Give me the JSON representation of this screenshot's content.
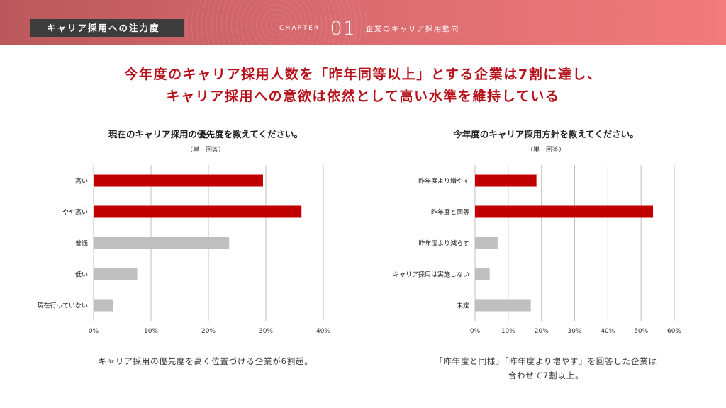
{
  "header": {
    "section_label": "キャリア採用への注力度",
    "chapter_word": "CHAPTER",
    "chapter_number": "01",
    "chapter_title": "企業のキャリア採用動向"
  },
  "headline": {
    "line1": "今年度のキャリア採用人数を「昨年同等以上」とする企業は7割に達し、",
    "line2": "キャリア採用への意欲は依然として高い水準を維持している"
  },
  "colors": {
    "highlight": "#c00000",
    "neutral": "#bfbfbf",
    "grid": "#bfbfbf"
  },
  "left_chart": {
    "subtitle": "（単一回答）",
    "caption": "キャリア採用の優先度を高く位置づける企業が6割超。"
  },
  "right_chart": {
    "subtitle": "（単一回答）",
    "caption_line1": "「昨年度と同様」「昨年度より増やす」を回答した企業は",
    "caption_line2": "合わせて7割以上。"
  },
  "chart_data": [
    {
      "type": "bar",
      "orientation": "horizontal",
      "title": "現在のキャリア採用の優先度を教えてください。",
      "categories": [
        "高い",
        "やや高い",
        "普通",
        "低い",
        "現在行っていない"
      ],
      "values": [
        29.5,
        36.2,
        23.6,
        7.6,
        3.4
      ],
      "highlight": [
        true,
        true,
        false,
        false,
        false
      ],
      "xlim": [
        0,
        40
      ],
      "ticks": [
        0,
        10,
        20,
        30,
        40
      ],
      "tick_labels": [
        "0%",
        "10%",
        "20%",
        "30%",
        "40%"
      ],
      "grid": true
    },
    {
      "type": "bar",
      "orientation": "horizontal",
      "title": "今年度のキャリア採用方針を教えてください。",
      "categories": [
        "昨年度より増やす",
        "昨年度と同等",
        "昨年度より減らす",
        "キャリア採用は実施しない",
        "未定"
      ],
      "values": [
        18.5,
        53.6,
        6.8,
        4.4,
        16.8
      ],
      "highlight": [
        true,
        true,
        false,
        false,
        false
      ],
      "xlim": [
        0,
        60
      ],
      "ticks": [
        0,
        10,
        20,
        30,
        40,
        50,
        60
      ],
      "tick_labels": [
        "0%",
        "10%",
        "20%",
        "30%",
        "40%",
        "50%",
        "60%"
      ],
      "grid": true
    }
  ]
}
